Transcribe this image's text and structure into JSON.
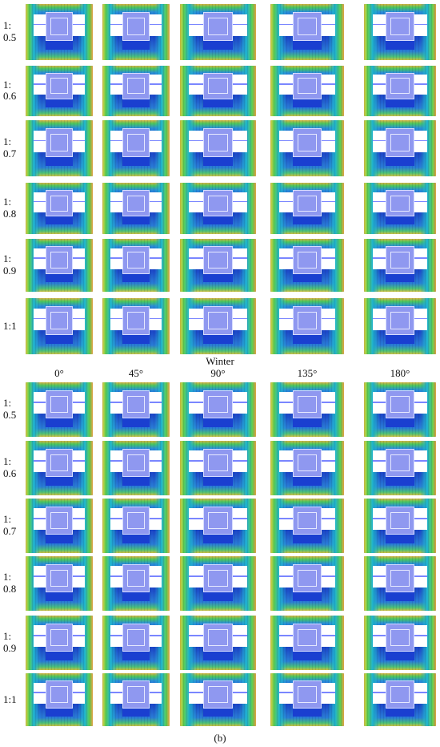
{
  "season_label": "Winter",
  "column_headers": [
    "0°",
    "45°",
    "90°",
    "135°",
    "180°"
  ],
  "row_labels": [
    "1:\n0.5",
    "1:\n0.6",
    "1:\n0.7",
    "1:\n0.8",
    "1:\n0.9",
    "1:1"
  ],
  "caption": "(b)",
  "palette": {
    "background": "#ffffff",
    "low_velocity": "#1a3fd0",
    "mid_velocity": "#1fb8cf",
    "high_velocity": "#f0d23a",
    "building": "#8f98f0"
  }
}
